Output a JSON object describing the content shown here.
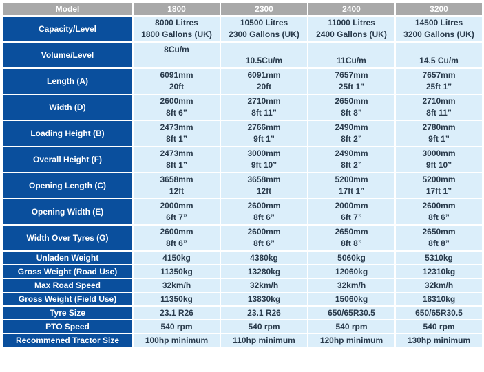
{
  "headers": [
    "Model",
    "1800",
    "2300",
    "2400",
    "3200"
  ],
  "rows": [
    {
      "label": "Capacity/Level",
      "tall": true,
      "values": [
        [
          "8000 Litres",
          "1800 Gallons (UK)"
        ],
        [
          "10500 Litres",
          "2300 Gallons (UK)"
        ],
        [
          "11000 Litres",
          "2400 Gallons (UK)"
        ],
        [
          "14500 Litres",
          "3200 Gallons (UK)"
        ]
      ]
    },
    {
      "label": "Volume/Level",
      "tall": true,
      "values": [
        [
          "8Cu/m"
        ],
        [
          "",
          "10.5Cu/m"
        ],
        [
          "",
          "11Cu/m"
        ],
        [
          "",
          "14.5 Cu/m"
        ]
      ]
    },
    {
      "label": "Length (A)",
      "tall": true,
      "values": [
        [
          "6091mm",
          "20ft"
        ],
        [
          "6091mm",
          "20ft"
        ],
        [
          "7657mm",
          "25ft 1”"
        ],
        [
          "7657mm",
          "25ft 1”"
        ]
      ]
    },
    {
      "label": "Width (D)",
      "tall": true,
      "values": [
        [
          "2600mm",
          "8ft 6”"
        ],
        [
          "2710mm",
          "8ft 11”"
        ],
        [
          "2650mm",
          "8ft 8”"
        ],
        [
          "2710mm",
          "8ft 11”"
        ]
      ]
    },
    {
      "label": "Loading Height (B)",
      "tall": true,
      "values": [
        [
          "2473mm",
          "8ft 1”"
        ],
        [
          "2766mm",
          "9ft 1”"
        ],
        [
          "2490mm",
          "8ft 2”"
        ],
        [
          "2780mm",
          "9ft 1”"
        ]
      ]
    },
    {
      "label": "Overall Height (F)",
      "tall": true,
      "values": [
        [
          "2473mm",
          "8ft 1”"
        ],
        [
          "3000mm",
          "9ft 10”"
        ],
        [
          "2490mm",
          "8ft 2”"
        ],
        [
          "3000mm",
          "9ft 10”"
        ]
      ]
    },
    {
      "label": "Opening Length (C)",
      "tall": true,
      "values": [
        [
          "3658mm",
          "12ft"
        ],
        [
          "3658mm",
          "12ft"
        ],
        [
          "5200mm",
          "17ft 1”"
        ],
        [
          "5200mm",
          "17ft 1”"
        ]
      ]
    },
    {
      "label": "Opening Width (E)",
      "tall": true,
      "values": [
        [
          "2000mm",
          "6ft 7”"
        ],
        [
          "2600mm",
          "8ft 6”"
        ],
        [
          "2000mm",
          "6ft 7”"
        ],
        [
          "2600mm",
          "8ft 6”"
        ]
      ]
    },
    {
      "label": "Width Over Tyres (G)",
      "tall": true,
      "values": [
        [
          "2600mm",
          "8ft 6”"
        ],
        [
          "2600mm",
          "8ft 6”"
        ],
        [
          "2650mm",
          "8ft 8”"
        ],
        [
          "2650mm",
          "8ft 8”"
        ]
      ]
    },
    {
      "label": "Unladen Weight",
      "tall": false,
      "values": [
        [
          "4150kg"
        ],
        [
          "4380kg"
        ],
        [
          "5060kg"
        ],
        [
          "5310kg"
        ]
      ]
    },
    {
      "label": "Gross Weight (Road Use)",
      "tall": false,
      "values": [
        [
          "11350kg"
        ],
        [
          "13280kg"
        ],
        [
          "12060kg"
        ],
        [
          "12310kg"
        ]
      ]
    },
    {
      "label": "Max Road Speed",
      "tall": false,
      "values": [
        [
          "32km/h"
        ],
        [
          "32km/h"
        ],
        [
          "32km/h"
        ],
        [
          "32km/h"
        ]
      ]
    },
    {
      "label": "Gross Weight (Field Use)",
      "tall": false,
      "values": [
        [
          "11350kg"
        ],
        [
          "13830kg"
        ],
        [
          "15060kg"
        ],
        [
          "18310kg"
        ]
      ]
    },
    {
      "label": "Tyre Size",
      "tall": false,
      "values": [
        [
          "23.1 R26"
        ],
        [
          "23.1 R26"
        ],
        [
          "650/65R30.5"
        ],
        [
          "650/65R30.5"
        ]
      ]
    },
    {
      "label": "PTO Speed",
      "tall": false,
      "values": [
        [
          "540 rpm"
        ],
        [
          "540 rpm"
        ],
        [
          "540 rpm"
        ],
        [
          "540 rpm"
        ]
      ]
    },
    {
      "label": "Recommened Tractor Size",
      "tall": false,
      "values": [
        [
          "100hp minimum"
        ],
        [
          "110hp minimum"
        ],
        [
          "120hp minimum"
        ],
        [
          "130hp minimum"
        ]
      ]
    }
  ]
}
